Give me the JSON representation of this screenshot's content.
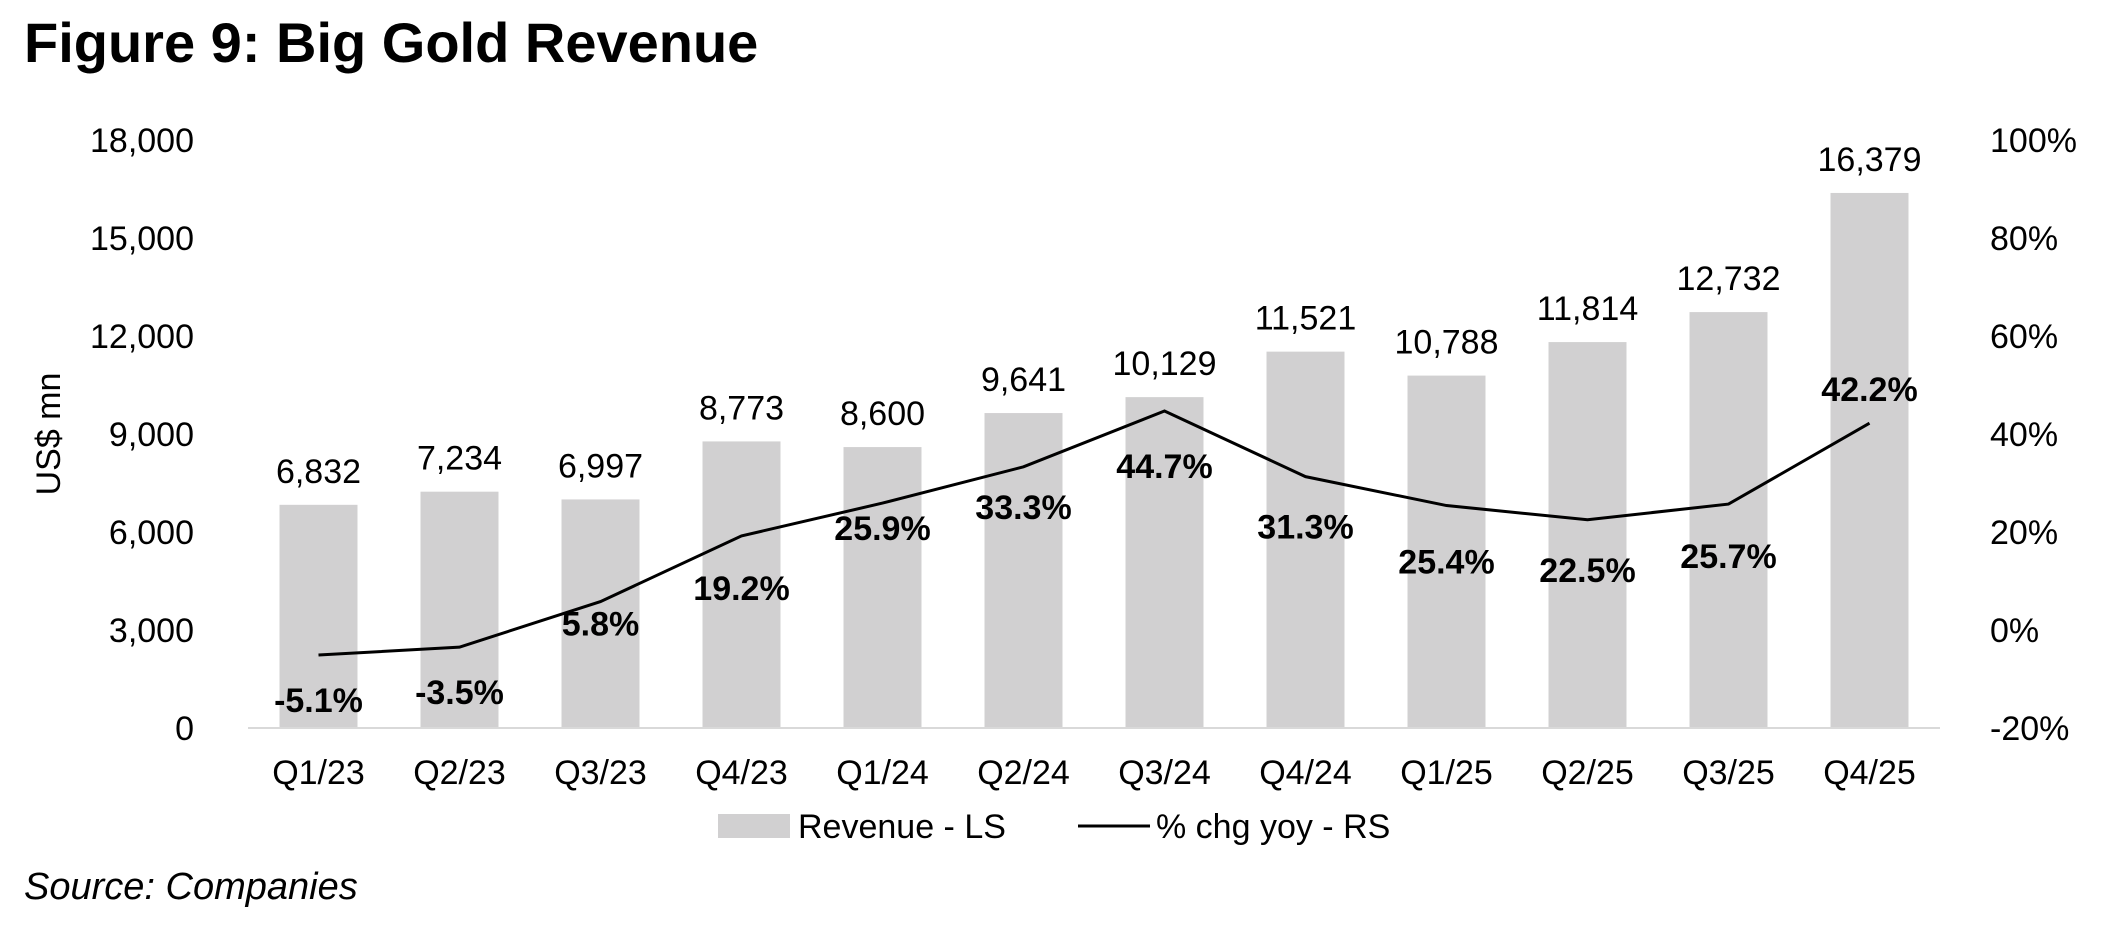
{
  "title": "Figure 9: Big Gold Revenue",
  "source": "Source: Companies",
  "chart_data": {
    "type": "bar",
    "categories": [
      "Q1/23",
      "Q2/23",
      "Q3/23",
      "Q4/23",
      "Q1/24",
      "Q2/24",
      "Q3/24",
      "Q4/24",
      "Q1/25",
      "Q2/25",
      "Q3/25",
      "Q4/25"
    ],
    "series": [
      {
        "name": "Revenue - LS",
        "type": "bar",
        "axis": "left",
        "color": "#d1d0d1",
        "values": [
          6832,
          7234,
          6997,
          8773,
          8600,
          9641,
          10129,
          11521,
          10788,
          11814,
          12732,
          16379
        ],
        "labels": [
          "6,832",
          "7,234",
          "6,997",
          "8,773",
          "8,600",
          "9,641",
          "10,129",
          "11,521",
          "10,788",
          "11,814",
          "12,732",
          "16,379"
        ]
      },
      {
        "name": "% chg yoy - RS",
        "type": "line",
        "axis": "right",
        "color": "#000000",
        "values": [
          -5.1,
          -3.5,
          5.8,
          19.2,
          25.9,
          33.3,
          44.7,
          31.3,
          25.4,
          22.5,
          25.7,
          42.2
        ],
        "labels": [
          "-5.1%",
          "-3.5%",
          "5.8%",
          "19.2%",
          "25.9%",
          "33.3%",
          "44.7%",
          "31.3%",
          "25.4%",
          "22.5%",
          "25.7%",
          "42.2%"
        ]
      }
    ],
    "ylabel": "US$ mn",
    "ylim": [
      0,
      18000
    ],
    "yticks": [
      "0",
      "3,000",
      "6,000",
      "9,000",
      "12,000",
      "15,000",
      "18,000"
    ],
    "y2lim": [
      -20,
      100
    ],
    "y2ticks": [
      "-20%",
      "0%",
      "20%",
      "40%",
      "60%",
      "80%",
      "100%"
    ],
    "grid": false,
    "legend": "bottom-center"
  }
}
